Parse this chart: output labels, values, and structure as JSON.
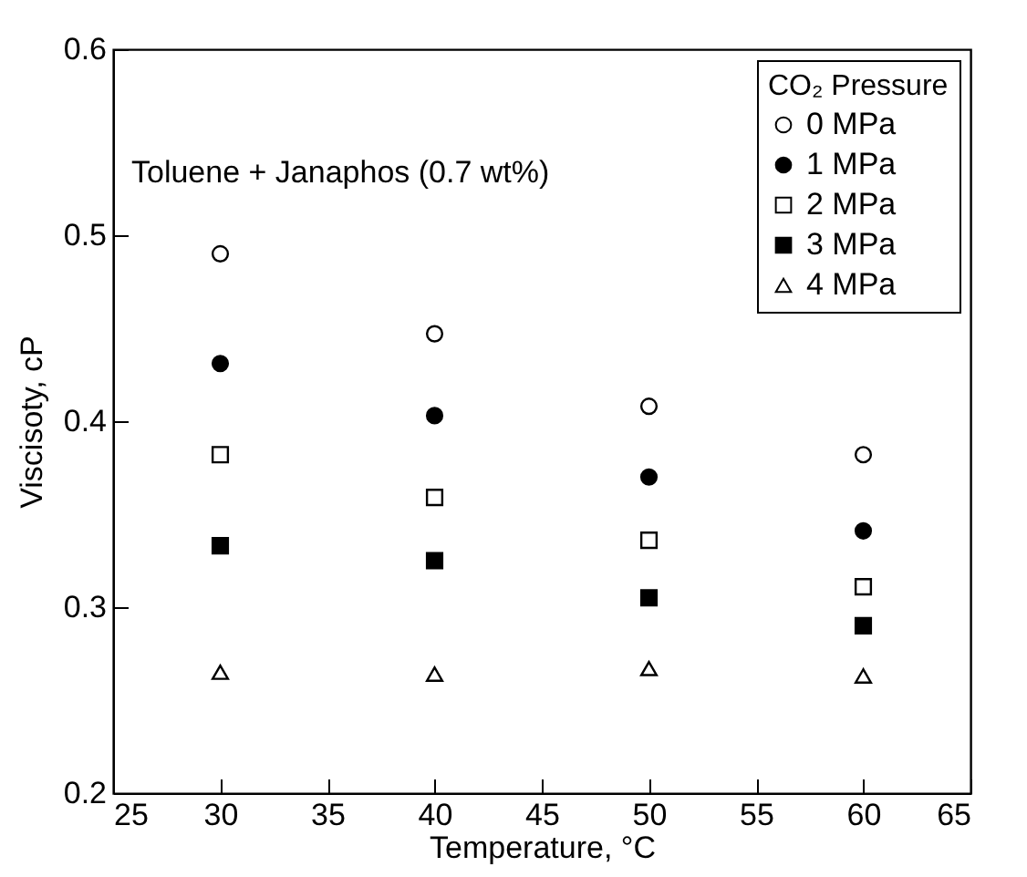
{
  "chart_data": {
    "type": "scatter",
    "xlabel": "Temperature, °C",
    "ylabel": "Viscisoty, cP",
    "legend_title": "CO₂ Pressure",
    "legend": "top right",
    "grid": false,
    "annotations": [
      "Toluene + Janaphos (0.7 wt%)"
    ],
    "x": [
      30,
      40,
      50,
      60
    ],
    "xlim": [
      25,
      65
    ],
    "xticks": [
      25,
      30,
      35,
      40,
      45,
      50,
      55,
      60,
      65
    ],
    "ylim": [
      0.2,
      0.6
    ],
    "yticks": [
      0.2,
      0.3,
      0.4,
      0.5,
      0.6
    ],
    "series": [
      {
        "name": "0 MPa",
        "color": "#000000",
        "marker": "circle",
        "values": [
          0.49,
          0.447,
          0.408,
          0.382
        ]
      },
      {
        "name": "1 MPa",
        "color": "#000000",
        "marker": "circle",
        "values": [
          0.431,
          0.403,
          0.37,
          0.341
        ]
      },
      {
        "name": "2 MPa",
        "color": "#000000",
        "marker": "square",
        "values": [
          0.382,
          0.359,
          0.336,
          0.311
        ]
      },
      {
        "name": "3 MPa",
        "color": "#000000",
        "marker": "square",
        "values": [
          0.333,
          0.325,
          0.305,
          0.29
        ]
      },
      {
        "name": "4 MPa",
        "color": "#000000",
        "marker": "triangle",
        "values": [
          0.265,
          0.264,
          0.267,
          0.263
        ]
      }
    ]
  }
}
